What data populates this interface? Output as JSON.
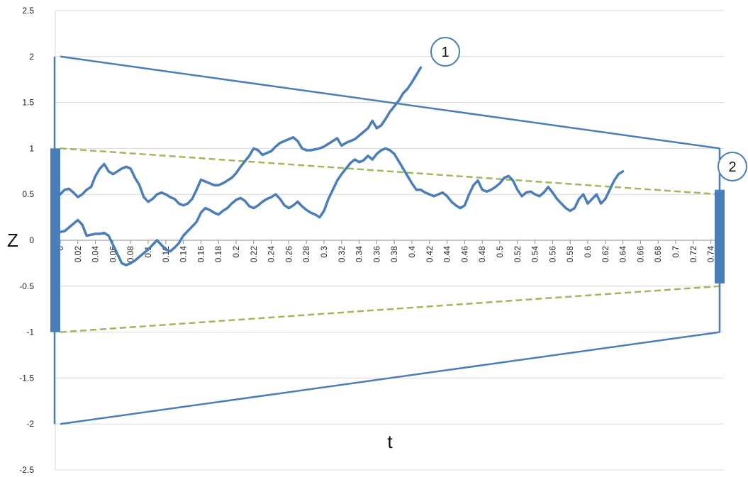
{
  "colors": {
    "boundary": "#4a7ebb",
    "dashed": "#9bbb59",
    "grid": "#d9d9d9",
    "background": "#ffffff"
  },
  "chart_data": {
    "type": "line",
    "title": "",
    "xlabel": "t",
    "ylabel": "Z",
    "xlim": [
      0,
      0.75
    ],
    "ylim": [
      -2.5,
      2.5
    ],
    "grid": "horizontal",
    "y_ticks": [
      "2.5",
      "2",
      "1.5",
      "1",
      "0.5",
      "0",
      "-0.5",
      "-1",
      "-1.5",
      "-2",
      "-2.5"
    ],
    "x_ticks": [
      "0",
      "0.02",
      "0.04",
      "0.06",
      "0.08",
      "0.1",
      "0.12",
      "0.14",
      "0.16",
      "0.18",
      "0.2",
      "0.22",
      "0.24",
      "0.26",
      "0.28",
      "0.3",
      "0.32",
      "0.34",
      "0.36",
      "0.38",
      "0.4",
      "0.42",
      "0.44",
      "0.46",
      "0.48",
      "0.5",
      "0.52",
      "0.54",
      "0.56",
      "0.58",
      "0.6",
      "0.62",
      "0.64",
      "0.66",
      "0.68",
      "0.7",
      "0.72",
      "0.74"
    ],
    "outer_boundary": {
      "upper": [
        [
          0,
          2.0
        ],
        [
          0.75,
          1.0
        ]
      ],
      "lower": [
        [
          0,
          -2.0
        ],
        [
          0.75,
          -1.0
        ]
      ]
    },
    "inner_boundary": {
      "upper": [
        [
          0,
          1.0
        ],
        [
          0.75,
          0.5
        ]
      ],
      "lower": [
        [
          0,
          -1.0
        ],
        [
          0.75,
          -0.5
        ]
      ]
    },
    "initial_interval": {
      "t": 0,
      "low": -1.0,
      "high": 1.0
    },
    "final_interval": {
      "t": 0.75,
      "low": -0.47,
      "high": 0.55
    },
    "series": [
      {
        "values": [
          [
            0.0,
            0.5
          ],
          [
            0.005,
            0.55
          ],
          [
            0.01,
            0.56
          ],
          [
            0.015,
            0.52
          ],
          [
            0.02,
            0.47
          ],
          [
            0.025,
            0.5
          ],
          [
            0.03,
            0.55
          ],
          [
            0.035,
            0.58
          ],
          [
            0.04,
            0.7
          ],
          [
            0.045,
            0.78
          ],
          [
            0.05,
            0.83
          ],
          [
            0.055,
            0.75
          ],
          [
            0.06,
            0.72
          ],
          [
            0.065,
            0.75
          ],
          [
            0.07,
            0.78
          ],
          [
            0.075,
            0.8
          ],
          [
            0.08,
            0.78
          ],
          [
            0.085,
            0.68
          ],
          [
            0.09,
            0.6
          ],
          [
            0.095,
            0.47
          ],
          [
            0.1,
            0.42
          ],
          [
            0.105,
            0.45
          ],
          [
            0.11,
            0.5
          ],
          [
            0.115,
            0.52
          ],
          [
            0.12,
            0.5
          ],
          [
            0.125,
            0.47
          ],
          [
            0.13,
            0.45
          ],
          [
            0.135,
            0.4
          ],
          [
            0.14,
            0.38
          ],
          [
            0.145,
            0.4
          ],
          [
            0.15,
            0.45
          ],
          [
            0.155,
            0.55
          ],
          [
            0.16,
            0.66
          ],
          [
            0.165,
            0.64
          ],
          [
            0.17,
            0.62
          ],
          [
            0.175,
            0.6
          ],
          [
            0.18,
            0.6
          ],
          [
            0.185,
            0.62
          ],
          [
            0.19,
            0.65
          ],
          [
            0.195,
            0.68
          ],
          [
            0.2,
            0.73
          ],
          [
            0.205,
            0.8
          ],
          [
            0.21,
            0.86
          ],
          [
            0.215,
            0.92
          ],
          [
            0.22,
            1.0
          ],
          [
            0.225,
            0.98
          ],
          [
            0.23,
            0.93
          ],
          [
            0.235,
            0.95
          ],
          [
            0.24,
            0.97
          ],
          [
            0.245,
            1.02
          ],
          [
            0.25,
            1.06
          ],
          [
            0.255,
            1.08
          ],
          [
            0.26,
            1.1
          ],
          [
            0.265,
            1.12
          ],
          [
            0.27,
            1.08
          ],
          [
            0.275,
            1.0
          ],
          [
            0.28,
            0.98
          ],
          [
            0.285,
            0.98
          ],
          [
            0.29,
            0.99
          ],
          [
            0.295,
            1.0
          ],
          [
            0.3,
            1.02
          ],
          [
            0.305,
            1.05
          ],
          [
            0.31,
            1.08
          ],
          [
            0.315,
            1.11
          ],
          [
            0.32,
            1.03
          ],
          [
            0.325,
            1.06
          ],
          [
            0.33,
            1.08
          ],
          [
            0.335,
            1.1
          ],
          [
            0.34,
            1.14
          ],
          [
            0.345,
            1.18
          ],
          [
            0.35,
            1.22
          ],
          [
            0.355,
            1.3
          ],
          [
            0.36,
            1.22
          ],
          [
            0.365,
            1.25
          ],
          [
            0.37,
            1.32
          ],
          [
            0.375,
            1.4
          ],
          [
            0.38,
            1.46
          ],
          [
            0.385,
            1.52
          ],
          [
            0.39,
            1.6
          ],
          [
            0.395,
            1.65
          ],
          [
            0.4,
            1.72
          ],
          [
            0.405,
            1.8
          ],
          [
            0.41,
            1.88
          ]
        ]
      },
      {
        "values": [
          [
            0.0,
            0.09
          ],
          [
            0.005,
            0.1
          ],
          [
            0.01,
            0.14
          ],
          [
            0.015,
            0.18
          ],
          [
            0.02,
            0.22
          ],
          [
            0.025,
            0.17
          ],
          [
            0.03,
            0.05
          ],
          [
            0.035,
            0.06
          ],
          [
            0.04,
            0.07
          ],
          [
            0.045,
            0.07
          ],
          [
            0.05,
            0.08
          ],
          [
            0.055,
            0.05
          ],
          [
            0.06,
            -0.05
          ],
          [
            0.065,
            -0.15
          ],
          [
            0.07,
            -0.25
          ],
          [
            0.075,
            -0.27
          ],
          [
            0.08,
            -0.25
          ],
          [
            0.085,
            -0.22
          ],
          [
            0.09,
            -0.18
          ],
          [
            0.095,
            -0.14
          ],
          [
            0.1,
            -0.1
          ],
          [
            0.105,
            -0.05
          ],
          [
            0.11,
            0.0
          ],
          [
            0.115,
            -0.05
          ],
          [
            0.12,
            -0.1
          ],
          [
            0.125,
            -0.12
          ],
          [
            0.13,
            -0.08
          ],
          [
            0.135,
            -0.03
          ],
          [
            0.14,
            0.05
          ],
          [
            0.145,
            0.1
          ],
          [
            0.15,
            0.15
          ],
          [
            0.155,
            0.2
          ],
          [
            0.16,
            0.3
          ],
          [
            0.165,
            0.35
          ],
          [
            0.17,
            0.33
          ],
          [
            0.175,
            0.3
          ],
          [
            0.18,
            0.28
          ],
          [
            0.185,
            0.32
          ],
          [
            0.19,
            0.35
          ],
          [
            0.195,
            0.4
          ],
          [
            0.2,
            0.44
          ],
          [
            0.205,
            0.46
          ],
          [
            0.21,
            0.43
          ],
          [
            0.215,
            0.37
          ],
          [
            0.22,
            0.35
          ],
          [
            0.225,
            0.38
          ],
          [
            0.23,
            0.42
          ],
          [
            0.235,
            0.45
          ],
          [
            0.24,
            0.47
          ],
          [
            0.245,
            0.5
          ],
          [
            0.25,
            0.45
          ],
          [
            0.255,
            0.38
          ],
          [
            0.26,
            0.35
          ],
          [
            0.265,
            0.38
          ],
          [
            0.27,
            0.42
          ],
          [
            0.275,
            0.37
          ],
          [
            0.28,
            0.33
          ],
          [
            0.285,
            0.3
          ],
          [
            0.29,
            0.28
          ],
          [
            0.295,
            0.25
          ],
          [
            0.3,
            0.32
          ],
          [
            0.305,
            0.45
          ],
          [
            0.31,
            0.55
          ],
          [
            0.315,
            0.65
          ],
          [
            0.32,
            0.72
          ],
          [
            0.325,
            0.78
          ],
          [
            0.33,
            0.84
          ],
          [
            0.335,
            0.88
          ],
          [
            0.34,
            0.85
          ],
          [
            0.345,
            0.87
          ],
          [
            0.35,
            0.92
          ],
          [
            0.355,
            0.88
          ],
          [
            0.36,
            0.94
          ],
          [
            0.365,
            0.98
          ],
          [
            0.37,
            1.0
          ],
          [
            0.375,
            0.98
          ],
          [
            0.38,
            0.94
          ],
          [
            0.385,
            0.86
          ],
          [
            0.39,
            0.78
          ],
          [
            0.395,
            0.7
          ],
          [
            0.4,
            0.62
          ],
          [
            0.405,
            0.55
          ],
          [
            0.41,
            0.55
          ],
          [
            0.415,
            0.52
          ],
          [
            0.42,
            0.5
          ],
          [
            0.425,
            0.48
          ],
          [
            0.43,
            0.5
          ],
          [
            0.435,
            0.52
          ],
          [
            0.44,
            0.48
          ],
          [
            0.445,
            0.42
          ],
          [
            0.45,
            0.38
          ],
          [
            0.455,
            0.35
          ],
          [
            0.46,
            0.38
          ],
          [
            0.465,
            0.5
          ],
          [
            0.47,
            0.6
          ],
          [
            0.475,
            0.65
          ],
          [
            0.48,
            0.55
          ],
          [
            0.485,
            0.53
          ],
          [
            0.49,
            0.55
          ],
          [
            0.495,
            0.58
          ],
          [
            0.5,
            0.62
          ],
          [
            0.505,
            0.68
          ],
          [
            0.51,
            0.7
          ],
          [
            0.515,
            0.65
          ],
          [
            0.52,
            0.55
          ],
          [
            0.525,
            0.48
          ],
          [
            0.53,
            0.52
          ],
          [
            0.535,
            0.53
          ],
          [
            0.54,
            0.5
          ],
          [
            0.545,
            0.48
          ],
          [
            0.55,
            0.52
          ],
          [
            0.555,
            0.58
          ],
          [
            0.56,
            0.52
          ],
          [
            0.565,
            0.45
          ],
          [
            0.57,
            0.4
          ],
          [
            0.575,
            0.35
          ],
          [
            0.58,
            0.32
          ],
          [
            0.585,
            0.35
          ],
          [
            0.59,
            0.45
          ],
          [
            0.595,
            0.5
          ],
          [
            0.6,
            0.4
          ],
          [
            0.605,
            0.45
          ],
          [
            0.61,
            0.5
          ],
          [
            0.615,
            0.4
          ],
          [
            0.62,
            0.45
          ],
          [
            0.625,
            0.55
          ],
          [
            0.63,
            0.65
          ],
          [
            0.635,
            0.72
          ],
          [
            0.64,
            0.75
          ]
        ]
      }
    ]
  },
  "annotations": {
    "marker_1": "1",
    "marker_2": "2"
  }
}
